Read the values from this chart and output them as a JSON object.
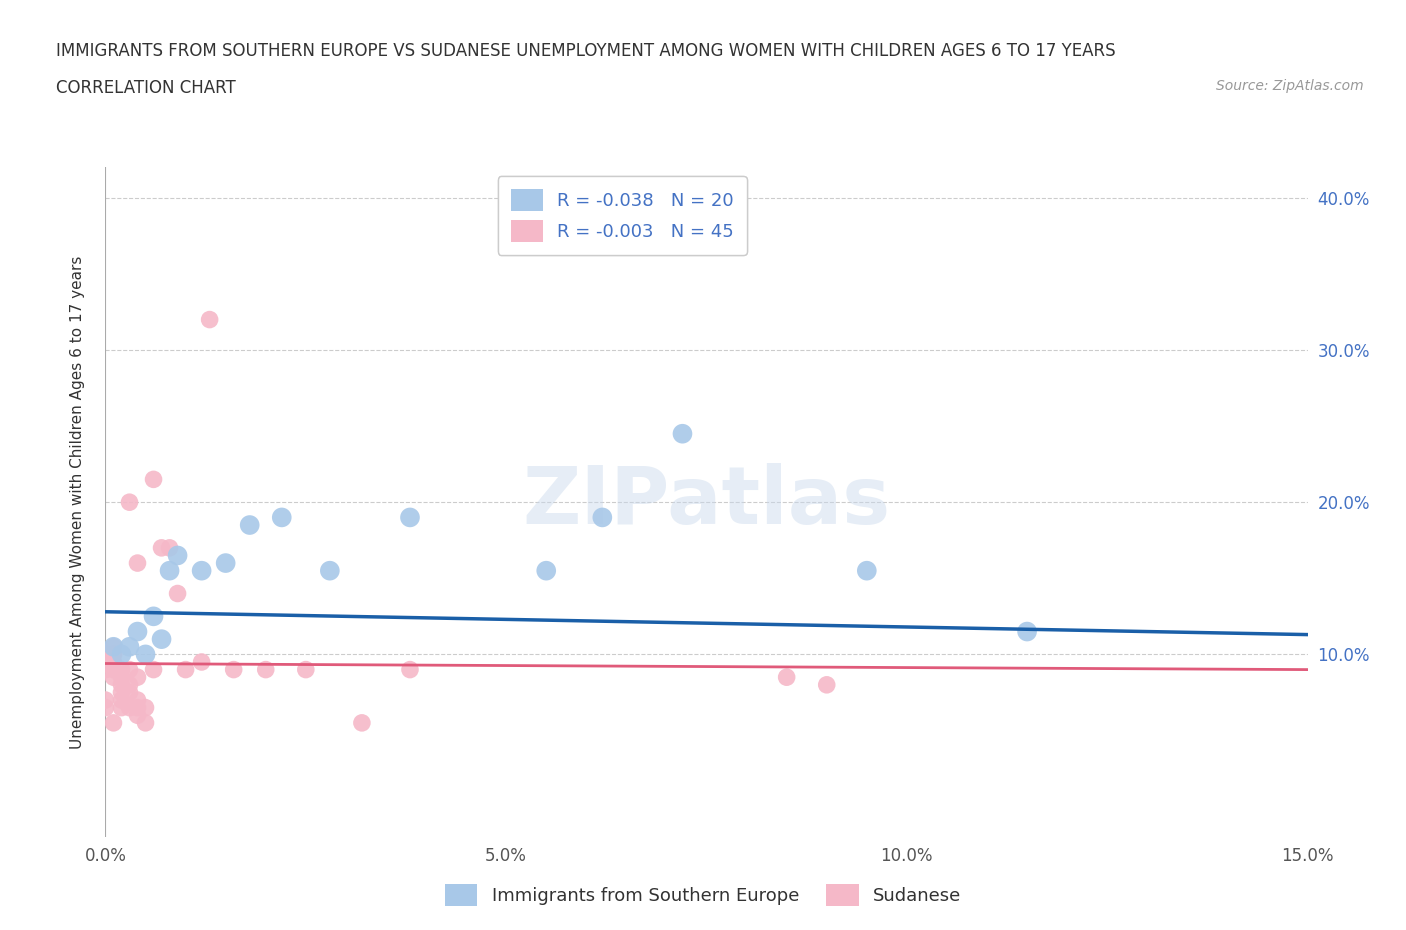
{
  "title_line1": "IMMIGRANTS FROM SOUTHERN EUROPE VS SUDANESE UNEMPLOYMENT AMONG WOMEN WITH CHILDREN AGES 6 TO 17 YEARS",
  "title_line2": "CORRELATION CHART",
  "source_text": "Source: ZipAtlas.com",
  "ylabel": "Unemployment Among Women with Children Ages 6 to 17 years",
  "xlim": [
    0.0,
    0.15
  ],
  "ylim": [
    -0.02,
    0.42
  ],
  "xtick_labels": [
    "0.0%",
    "5.0%",
    "10.0%",
    "15.0%"
  ],
  "xtick_vals": [
    0.0,
    0.05,
    0.1,
    0.15
  ],
  "ytick_vals": [
    0.1,
    0.2,
    0.3,
    0.4
  ],
  "right_ytick_labels": [
    "10.0%",
    "20.0%",
    "30.0%",
    "40.0%"
  ],
  "right_ytick_vals": [
    0.1,
    0.2,
    0.3,
    0.4
  ],
  "blue_R": -0.038,
  "blue_N": 20,
  "pink_R": -0.003,
  "pink_N": 45,
  "legend_label_blue": "Immigrants from Southern Europe",
  "legend_label_pink": "Sudanese",
  "blue_color": "#a8c8e8",
  "pink_color": "#f5b8c8",
  "blue_line_color": "#1a5fa8",
  "pink_line_color": "#e05a7a",
  "watermark": "ZIPatlas",
  "background_color": "#ffffff",
  "grid_color": "#cccccc",
  "blue_scatter_x": [
    0.001,
    0.002,
    0.003,
    0.004,
    0.005,
    0.006,
    0.007,
    0.008,
    0.009,
    0.012,
    0.015,
    0.018,
    0.022,
    0.028,
    0.038,
    0.055,
    0.062,
    0.072,
    0.095,
    0.115
  ],
  "blue_scatter_y": [
    0.105,
    0.1,
    0.105,
    0.115,
    0.1,
    0.125,
    0.11,
    0.155,
    0.165,
    0.155,
    0.16,
    0.185,
    0.19,
    0.155,
    0.19,
    0.155,
    0.19,
    0.245,
    0.155,
    0.115
  ],
  "pink_scatter_x": [
    0.0,
    0.0,
    0.0,
    0.0,
    0.0,
    0.001,
    0.001,
    0.001,
    0.001,
    0.001,
    0.001,
    0.001,
    0.002,
    0.002,
    0.002,
    0.002,
    0.002,
    0.002,
    0.003,
    0.003,
    0.003,
    0.003,
    0.003,
    0.004,
    0.004,
    0.004,
    0.004,
    0.004,
    0.005,
    0.005,
    0.006,
    0.006,
    0.007,
    0.008,
    0.009,
    0.01,
    0.012,
    0.013,
    0.016,
    0.02,
    0.025,
    0.032,
    0.038,
    0.085,
    0.09
  ],
  "pink_scatter_y": [
    0.09,
    0.095,
    0.1,
    0.07,
    0.065,
    0.085,
    0.09,
    0.095,
    0.1,
    0.1,
    0.105,
    0.055,
    0.07,
    0.075,
    0.08,
    0.085,
    0.09,
    0.065,
    0.065,
    0.075,
    0.08,
    0.09,
    0.2,
    0.06,
    0.065,
    0.07,
    0.085,
    0.16,
    0.055,
    0.065,
    0.215,
    0.09,
    0.17,
    0.17,
    0.14,
    0.09,
    0.095,
    0.32,
    0.09,
    0.09,
    0.09,
    0.055,
    0.09,
    0.085,
    0.08
  ],
  "blue_trendline_x": [
    0.0,
    0.15
  ],
  "blue_trendline_y": [
    0.128,
    0.113
  ],
  "pink_trendline_x": [
    0.0,
    0.15
  ],
  "pink_trendline_y": [
    0.094,
    0.09
  ]
}
